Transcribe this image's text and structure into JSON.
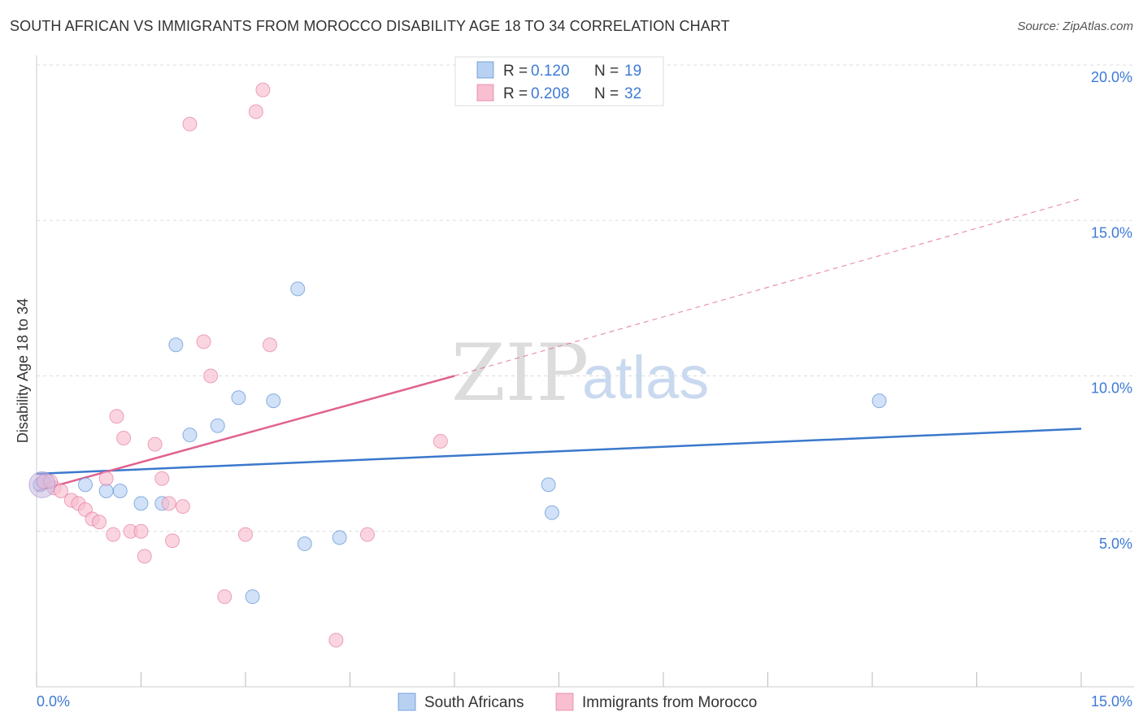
{
  "title": "SOUTH AFRICAN VS IMMIGRANTS FROM MOROCCO DISABILITY AGE 18 TO 34 CORRELATION CHART",
  "source": "Source: ZipAtlas.com",
  "watermark": {
    "zip": "ZIP",
    "atlas": "atlas"
  },
  "legend": {
    "r_label": "R =",
    "n_label": "N =",
    "rows": [
      {
        "r": "0.120",
        "n": "19"
      },
      {
        "r": "0.208",
        "n": "32"
      }
    ]
  },
  "colors": {
    "blue": "#3b78cc",
    "blue_fill": "#b8d1f2",
    "pink": "#e0628f",
    "pink_fill": "#f7bfd0",
    "tick_text": "#3d7ad6",
    "grid": "#dddddd"
  },
  "chart_data": {
    "type": "scatter",
    "title": "SOUTH AFRICAN VS IMMIGRANTS FROM MOROCCO DISABILITY AGE 18 TO 34 CORRELATION CHART",
    "xlabel": "",
    "ylabel": "Disability Age 18 to 34",
    "xlim": [
      0,
      15
    ],
    "ylim": [
      0,
      20
    ],
    "x_tick_labels": [
      "0.0%",
      "15.0%"
    ],
    "y_ticks": [
      5,
      10,
      15,
      20
    ],
    "y_tick_labels": [
      "5.0%",
      "10.0%",
      "15.0%",
      "20.0%"
    ],
    "grid": true,
    "legend_position": "top-center",
    "series": [
      {
        "name": "South Africans",
        "color": "#3b78cc",
        "points": [
          [
            0.05,
            6.5
          ],
          [
            0.7,
            6.5
          ],
          [
            1.0,
            6.3
          ],
          [
            1.2,
            6.3
          ],
          [
            1.5,
            5.9
          ],
          [
            1.8,
            5.9
          ],
          [
            2.0,
            11.0
          ],
          [
            2.2,
            8.1
          ],
          [
            2.6,
            8.4
          ],
          [
            2.9,
            9.3
          ],
          [
            3.1,
            2.9
          ],
          [
            3.4,
            9.2
          ],
          [
            3.75,
            12.8
          ],
          [
            3.85,
            4.6
          ],
          [
            4.35,
            4.8
          ],
          [
            7.35,
            6.5
          ],
          [
            7.4,
            5.6
          ],
          [
            12.1,
            9.2
          ],
          [
            0.1,
            6.6
          ]
        ],
        "trend": {
          "x": [
            0,
            15
          ],
          "y": [
            6.85,
            8.3
          ]
        }
      },
      {
        "name": "Immigrants from Morocco",
        "color": "#e0628f",
        "points": [
          [
            0.1,
            6.6
          ],
          [
            0.25,
            6.4
          ],
          [
            0.35,
            6.3
          ],
          [
            0.5,
            6.0
          ],
          [
            0.6,
            5.9
          ],
          [
            0.7,
            5.7
          ],
          [
            0.8,
            5.4
          ],
          [
            0.9,
            5.3
          ],
          [
            1.0,
            6.7
          ],
          [
            1.1,
            4.9
          ],
          [
            1.15,
            8.7
          ],
          [
            1.25,
            8.0
          ],
          [
            1.35,
            5.0
          ],
          [
            1.5,
            5.0
          ],
          [
            1.55,
            4.2
          ],
          [
            1.7,
            7.8
          ],
          [
            1.8,
            6.7
          ],
          [
            1.9,
            5.9
          ],
          [
            1.95,
            4.7
          ],
          [
            2.1,
            5.8
          ],
          [
            2.2,
            18.1
          ],
          [
            2.4,
            11.1
          ],
          [
            2.5,
            10.0
          ],
          [
            2.7,
            2.9
          ],
          [
            3.0,
            4.9
          ],
          [
            3.15,
            18.5
          ],
          [
            3.25,
            19.2
          ],
          [
            3.35,
            11.0
          ],
          [
            4.3,
            1.5
          ],
          [
            4.75,
            4.9
          ],
          [
            5.8,
            7.9
          ],
          [
            0.2,
            6.6
          ]
        ],
        "trend": {
          "x": [
            0,
            6.0
          ],
          "y": [
            6.3,
            10.0
          ]
        },
        "trend_extension": {
          "x": [
            6.0,
            15
          ],
          "y": [
            10.0,
            15.7
          ]
        }
      }
    ]
  }
}
